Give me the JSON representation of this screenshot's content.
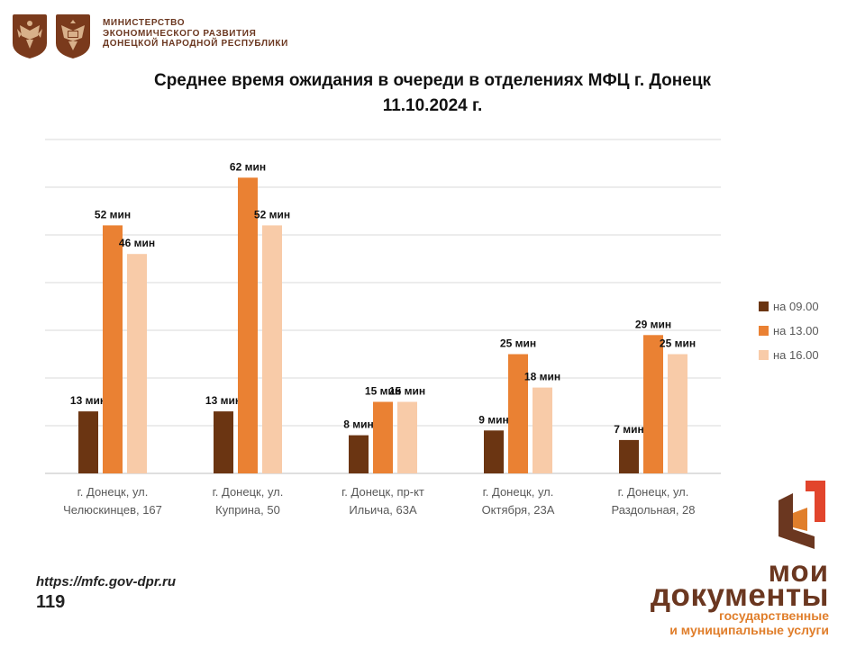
{
  "header": {
    "ministry_lines": [
      "МИНИСТЕРСТВО",
      "ЭКОНОМИЧЕСКОГО РАЗВИТИЯ",
      "ДОНЕЦКОЙ НАРОДНОЙ РЕСПУБЛИКИ"
    ]
  },
  "title_lines": [
    "Среднее время ожидания в очереди в отделениях МФЦ г. Донецк",
    "11.10.2024 г."
  ],
  "chart_data": {
    "type": "bar",
    "title": "Среднее время ожидания в очереди в отделениях МФЦ г. Донецк 11.10.2024 г.",
    "categories": [
      [
        "г. Донецк, ул.",
        "Челюскинцев, 167"
      ],
      [
        "г. Донецк, ул.",
        "Куприна, 50"
      ],
      [
        "г. Донецк, пр-кт",
        "Ильича, 63А"
      ],
      [
        "г. Донецк, ул.",
        "Октября, 23А"
      ],
      [
        "г. Донецк, ул.",
        "Раздольная, 28"
      ]
    ],
    "series": [
      {
        "name": "на 09.00",
        "color": "#6b3512",
        "values": [
          13,
          13,
          8,
          9,
          7
        ]
      },
      {
        "name": "на 13.00",
        "color": "#ea8133",
        "values": [
          52,
          62,
          15,
          25,
          29
        ]
      },
      {
        "name": "на 16.00",
        "color": "#f8cba8",
        "values": [
          46,
          52,
          15,
          18,
          25
        ]
      }
    ],
    "value_suffix": " мин",
    "ylim": [
      0,
      70
    ],
    "grid": true,
    "legend_position": "right"
  },
  "footer": {
    "url": "https://mfc.gov-dpr.ru",
    "page_number": "119"
  },
  "brand": {
    "line1": "мои",
    "line2": "документы",
    "sub1": "государственные",
    "sub2": "и муниципальные услуги",
    "colors": {
      "brown": "#6b3720",
      "orange": "#e07e2b",
      "red": "#e2452c"
    }
  }
}
